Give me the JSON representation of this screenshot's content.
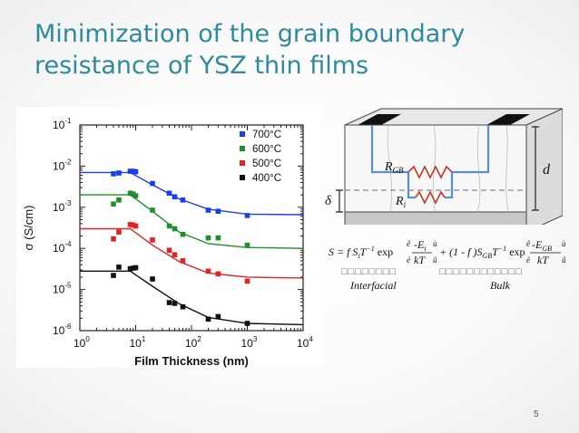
{
  "slide": {
    "title_line1": "Minimization of the grain boundary",
    "title_line2": "resistance of YSZ thin films",
    "page_number": "5"
  },
  "chart_data": {
    "type": "scatter",
    "xlabel": "Film Thickness (nm)",
    "ylabel": "σ (S/cm)",
    "xscale": "log",
    "yscale": "log",
    "xlim": [
      1,
      10000
    ],
    "ylim": [
      1e-06,
      0.1
    ],
    "x_ticks": [
      "10",
      "10",
      "10",
      "10",
      "10"
    ],
    "x_tick_exponents": [
      "0",
      "1",
      "2",
      "3",
      "4"
    ],
    "y_ticks": [
      "10",
      "10",
      "10",
      "10",
      "10",
      "10"
    ],
    "y_tick_exponents": [
      "-1",
      "-2",
      "-3",
      "-4",
      "-5",
      "-6"
    ],
    "legend_position": "top-right",
    "series": [
      {
        "name": "700°C",
        "color": "#1a3ee8",
        "points": [
          [
            4,
            0.0065
          ],
          [
            5,
            0.0068
          ],
          [
            8,
            0.0075
          ],
          [
            9,
            0.0075
          ],
          [
            10,
            0.0073
          ],
          [
            20,
            0.0038
          ],
          [
            40,
            0.0022
          ],
          [
            50,
            0.0018
          ],
          [
            70,
            0.0015
          ],
          [
            200,
            0.00085
          ],
          [
            300,
            0.0008
          ],
          [
            1000,
            0.00063
          ]
        ],
        "fit": [
          [
            1,
            0.007
          ],
          [
            8,
            0.007
          ],
          [
            20,
            0.0035
          ],
          [
            60,
            0.0016
          ],
          [
            200,
            0.0009
          ],
          [
            1000,
            0.00068
          ],
          [
            10000,
            0.00066
          ]
        ]
      },
      {
        "name": "600°C",
        "color": "#1e8f2c",
        "points": [
          [
            4,
            0.0012
          ],
          [
            5,
            0.0015
          ],
          [
            8,
            0.0022
          ],
          [
            9,
            0.0021
          ],
          [
            10,
            0.0019
          ],
          [
            20,
            0.00085
          ],
          [
            40,
            0.00035
          ],
          [
            50,
            0.0003
          ],
          [
            70,
            0.00022
          ],
          [
            200,
            0.00018
          ],
          [
            300,
            0.00018
          ],
          [
            1000,
            0.00012
          ]
        ],
        "fit": [
          [
            1,
            0.002
          ],
          [
            8,
            0.002
          ],
          [
            20,
            0.0008
          ],
          [
            60,
            0.00025
          ],
          [
            200,
            0.00013
          ],
          [
            1000,
            0.000105
          ],
          [
            10000,
            0.0001
          ]
        ]
      },
      {
        "name": "500°C",
        "color": "#e02424",
        "points": [
          [
            4,
            0.00017
          ],
          [
            5,
            0.00025
          ],
          [
            8,
            0.00038
          ],
          [
            9,
            0.00037
          ],
          [
            10,
            0.00035
          ],
          [
            20,
            0.00016
          ],
          [
            40,
            9e-05
          ],
          [
            50,
            7e-05
          ],
          [
            70,
            5e-05
          ],
          [
            200,
            2.8e-05
          ],
          [
            300,
            2.4e-05
          ],
          [
            1000,
            1.6e-05
          ]
        ],
        "fit": [
          [
            1,
            0.0003
          ],
          [
            8,
            0.0003
          ],
          [
            20,
            0.00012
          ],
          [
            60,
            4.8e-05
          ],
          [
            200,
            2.5e-05
          ],
          [
            1000,
            2e-05
          ],
          [
            10000,
            1.9e-05
          ]
        ]
      },
      {
        "name": "400°C",
        "color": "#111111",
        "points": [
          [
            4,
            2.2e-05
          ],
          [
            5,
            3.5e-05
          ],
          [
            8,
            3.2e-05
          ],
          [
            9,
            3.3e-05
          ],
          [
            10,
            3.4e-05
          ],
          [
            20,
            1.8e-05
          ],
          [
            40,
            4.8e-06
          ],
          [
            50,
            4.6e-06
          ],
          [
            70,
            3.8e-06
          ],
          [
            200,
            1.9e-06
          ],
          [
            300,
            2.2e-06
          ],
          [
            1000,
            1.5e-06
          ]
        ],
        "fit": [
          [
            1,
            2.8e-05
          ],
          [
            8,
            2.8e-05
          ],
          [
            20,
            1.2e-05
          ],
          [
            60,
            4.5e-06
          ],
          [
            200,
            2.1e-06
          ],
          [
            1000,
            1.5e-06
          ],
          [
            10000,
            1.4e-06
          ]
        ]
      }
    ]
  },
  "diagram": {
    "label_rgb": "R",
    "label_rgb_sub": "GB",
    "label_ri": "R",
    "label_ri_sub": "i",
    "label_d": "d",
    "label_delta": "δ"
  },
  "formula": {
    "equation": "S = f S",
    "eq_i": "i",
    "eq_rest1": "T",
    "eq_rest2": " exp",
    "eq_frac1_num": "-E",
    "eq_frac1_num_sub": "i",
    "eq_frac1_den": "kT",
    "eq_mid": " + (1 - f )S",
    "eq_mid_sub": "GB",
    "eq_rest3": "T",
    "eq_rest4": " exp",
    "eq_frac2_num": "-E",
    "eq_frac2_num_sub": "GB",
    "eq_frac2_den": "kT",
    "bracket_ul": "ê",
    "bracket_ur": "ù",
    "bracket_ll": "ë",
    "bracket_lr": "û",
    "exp_minus1": "−1",
    "boxes_left": "□□□□□□□□",
    "boxes_right": "□□□□□□□□□□□□",
    "interfacial_label": "Interfacial",
    "bulk_label": "Bulk"
  }
}
